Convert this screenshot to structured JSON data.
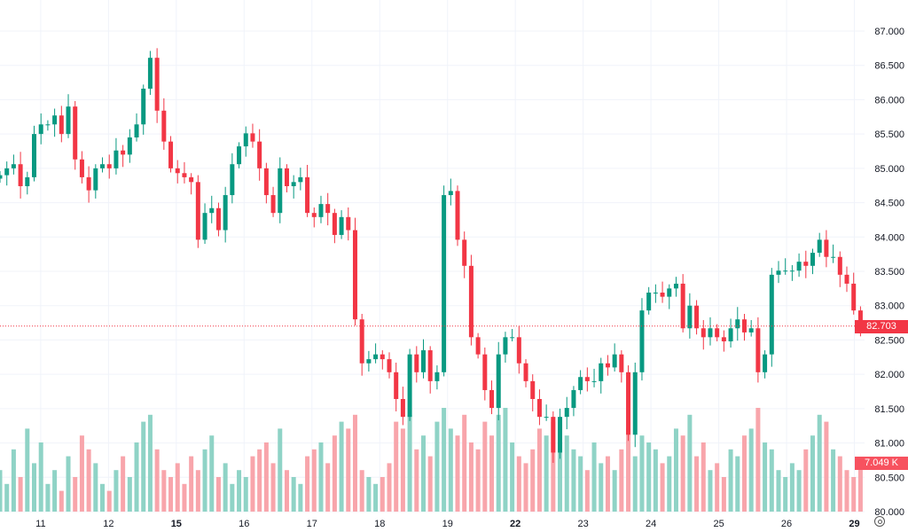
{
  "chart_data": {
    "type": "candlestick",
    "y_axis": {
      "min": 80.0,
      "max": 87.0,
      "ticks": [
        "80.000",
        "80.500",
        "81.000",
        "81.500",
        "82.000",
        "82.500",
        "83.000",
        "83.500",
        "84.000",
        "84.500",
        "85.000",
        "85.500",
        "86.000",
        "86.500",
        "87.000"
      ]
    },
    "x_ticks": [
      {
        "label": "11",
        "t": 0.6,
        "bold": false
      },
      {
        "label": "12",
        "t": 1.6,
        "bold": false
      },
      {
        "label": "15",
        "t": 2.6,
        "bold": true
      },
      {
        "label": "16",
        "t": 3.6,
        "bold": false
      },
      {
        "label": "17",
        "t": 4.6,
        "bold": false
      },
      {
        "label": "18",
        "t": 5.6,
        "bold": false
      },
      {
        "label": "19",
        "t": 6.6,
        "bold": false
      },
      {
        "label": "22",
        "t": 7.6,
        "bold": true
      },
      {
        "label": "23",
        "t": 8.6,
        "bold": false
      },
      {
        "label": "24",
        "t": 9.6,
        "bold": false
      },
      {
        "label": "25",
        "t": 10.6,
        "bold": false
      },
      {
        "label": "26",
        "t": 11.6,
        "bold": false
      },
      {
        "label": "29",
        "t": 12.6,
        "bold": true
      }
    ],
    "t_range": [
      0,
      12.75
    ],
    "closes": [
      84.9,
      85.0,
      85.06,
      84.74,
      84.87,
      85.5,
      85.64,
      85.64,
      85.77,
      85.5,
      85.9,
      85.13,
      84.87,
      84.68,
      85.0,
      85.06,
      85.0,
      85.26,
      85.2,
      85.45,
      85.64,
      86.16,
      86.61,
      85.84,
      85.39,
      85.0,
      84.93,
      84.87,
      84.8,
      83.96,
      84.35,
      84.42,
      84.1,
      84.61,
      85.06,
      85.32,
      85.51,
      85.39,
      85.0,
      84.61,
      84.35,
      85.0,
      84.74,
      84.8,
      84.87,
      84.35,
      84.29,
      84.48,
      84.35,
      84.03,
      84.29,
      84.1,
      82.8,
      82.16,
      82.22,
      82.29,
      82.22,
      82.03,
      81.64,
      81.38,
      82.29,
      82.03,
      82.35,
      81.9,
      82.03,
      84.61,
      84.67,
      83.96,
      83.58,
      82.54,
      82.29,
      81.77,
      81.51,
      82.29,
      82.54,
      82.54,
      82.16,
      81.9,
      81.64,
      81.38,
      81.38,
      80.86,
      81.38,
      81.51,
      81.77,
      81.96,
      81.9,
      81.9,
      82.16,
      82.1,
      82.29,
      82.03,
      81.12,
      82.03,
      82.93,
      83.19,
      83.19,
      83.13,
      83.25,
      83.32,
      82.67,
      83.0,
      82.67,
      82.54,
      82.67,
      82.54,
      82.48,
      82.67,
      82.8,
      82.61,
      82.67,
      82.03,
      82.29,
      83.45,
      83.51,
      83.51,
      83.51,
      83.64,
      83.58,
      83.77,
      83.96,
      83.71,
      83.71,
      83.45,
      83.32,
      82.93,
      82.703
    ],
    "volumes_k": [
      6,
      4,
      9,
      5,
      12,
      7,
      10,
      4,
      6,
      3,
      8,
      5,
      11,
      9,
      7,
      4,
      3,
      6,
      8,
      5,
      10,
      13,
      14,
      9,
      6,
      5,
      7,
      4,
      8,
      6,
      9,
      11,
      5,
      7,
      4,
      6,
      5,
      8,
      9,
      10,
      7,
      12,
      6,
      5,
      4,
      8,
      9,
      10,
      7,
      11,
      13,
      12,
      14,
      6,
      5,
      4,
      5,
      7,
      13,
      12,
      14,
      9,
      11,
      8,
      13,
      15,
      12,
      11,
      14,
      10,
      9,
      13,
      11,
      14,
      15,
      10,
      8,
      7,
      9,
      12,
      11,
      13,
      10,
      11,
      9,
      8,
      6,
      10,
      7,
      8,
      6,
      9,
      12,
      8,
      11,
      10,
      9,
      7,
      8,
      12,
      11,
      14,
      8,
      10,
      6,
      7,
      5,
      9,
      8,
      11,
      12,
      15,
      10,
      9,
      6,
      5,
      7,
      6,
      9,
      11,
      14,
      13,
      9,
      8,
      6,
      5,
      7.049
    ],
    "last_price_label": "82.703",
    "last_volume_label": "7.049 K",
    "colors": {
      "up": "#089981",
      "down": "#f23645",
      "up_vol": "#8fd3c6",
      "down_vol": "#f8a5ab",
      "grid": "#f0f3fa"
    }
  }
}
